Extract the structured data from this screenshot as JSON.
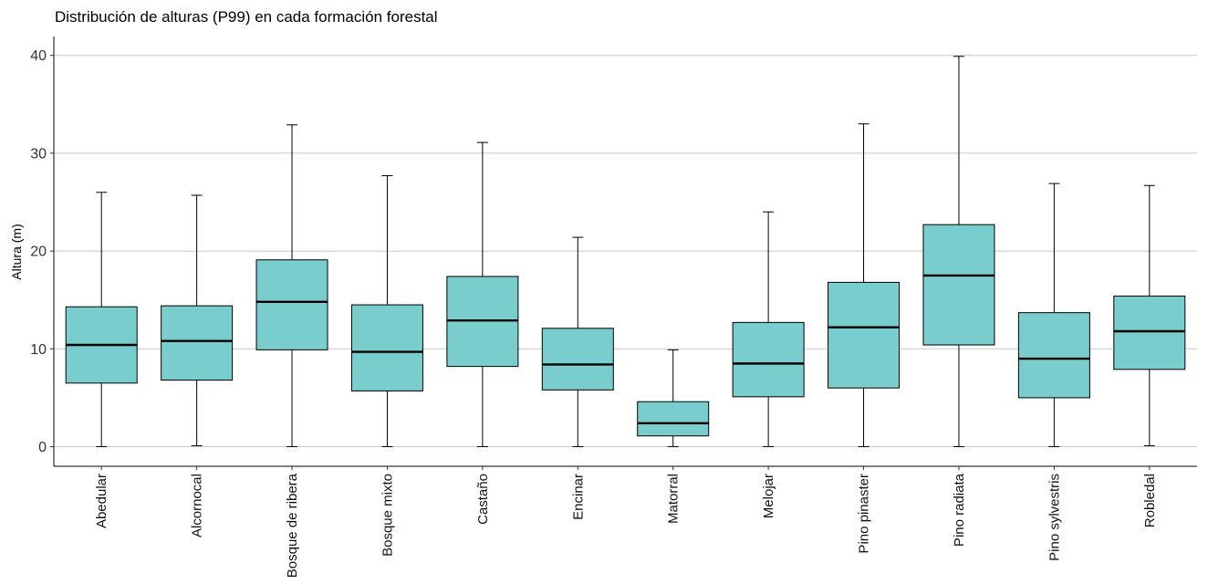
{
  "chart_data": {
    "type": "boxplot",
    "title": "Distribución de alturas (P99) en cada formación forestal",
    "xlabel": "",
    "ylabel": "Altura (m)",
    "ylim": [
      -2.1,
      42
    ],
    "y_ticks": [
      0,
      10,
      20,
      30,
      40
    ],
    "grid": "horizontal major",
    "legend": "none",
    "box_fill": "#79CDCD",
    "box_stroke": "#000000",
    "gridline_color": "#C8C8C8",
    "categories": [
      "Abedular",
      "Alcornocal",
      "Bosque de ribera",
      "Bosque mixto",
      "Castaño",
      "Encinar",
      "Matorral",
      "Melojar",
      "Pino pinaster",
      "Pino radiata",
      "Pino sylvestris",
      "Robledal"
    ],
    "boxes": [
      {
        "min": 0.0,
        "q1": 6.5,
        "median": 10.4,
        "q3": 14.3,
        "max": 26.0
      },
      {
        "min": 0.1,
        "q1": 6.8,
        "median": 10.8,
        "q3": 14.4,
        "max": 25.7
      },
      {
        "min": 0.0,
        "q1": 9.9,
        "median": 14.8,
        "q3": 19.1,
        "max": 32.9
      },
      {
        "min": 0.0,
        "q1": 5.7,
        "median": 9.7,
        "q3": 14.5,
        "max": 27.7
      },
      {
        "min": 0.0,
        "q1": 8.2,
        "median": 12.9,
        "q3": 17.4,
        "max": 31.1
      },
      {
        "min": 0.0,
        "q1": 5.8,
        "median": 8.4,
        "q3": 12.1,
        "max": 21.4
      },
      {
        "min": 0.0,
        "q1": 1.1,
        "median": 2.4,
        "q3": 4.6,
        "max": 9.9
      },
      {
        "min": 0.0,
        "q1": 5.1,
        "median": 8.5,
        "q3": 12.7,
        "max": 24.0
      },
      {
        "min": 0.0,
        "q1": 6.0,
        "median": 12.2,
        "q3": 16.8,
        "max": 33.0
      },
      {
        "min": 0.0,
        "q1": 10.4,
        "median": 17.5,
        "q3": 22.7,
        "max": 39.9
      },
      {
        "min": 0.0,
        "q1": 5.0,
        "median": 9.0,
        "q3": 13.7,
        "max": 26.9
      },
      {
        "min": 0.1,
        "q1": 7.9,
        "median": 11.8,
        "q3": 15.4,
        "max": 26.7
      }
    ]
  }
}
